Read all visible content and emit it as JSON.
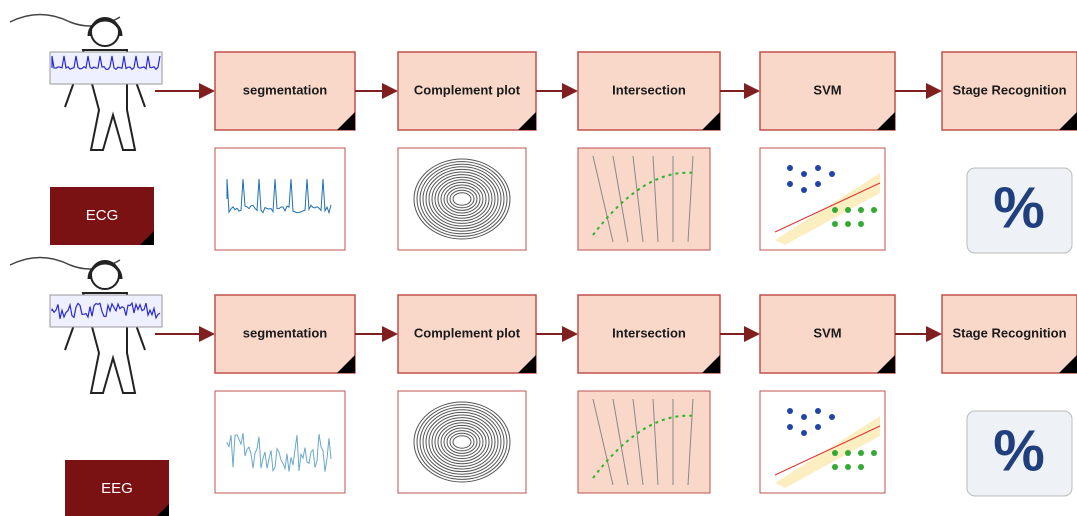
{
  "rows": [
    {
      "label": "ECG",
      "steps": [
        "segmentation",
        "Complement plot",
        "Intersection",
        "SVM",
        "Stage Recognition"
      ],
      "result": "%"
    },
    {
      "label": "EEG",
      "steps": [
        "segmentation",
        "Complement plot",
        "Intersection",
        "SVM",
        "Stage Recognition"
      ],
      "result": "%"
    }
  ]
}
